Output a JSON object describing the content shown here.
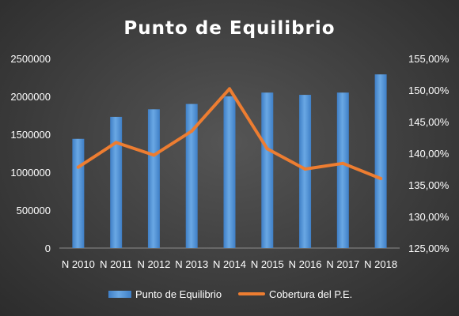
{
  "chart_data": {
    "type": "bar",
    "title": "Punto de Equilibrio",
    "categories": [
      "N 2010",
      "N 2011",
      "N 2012",
      "N 2013",
      "N 2014",
      "N 2015",
      "N 2016",
      "N 2017",
      "N 2018"
    ],
    "series": [
      {
        "name": "Punto de Equilibrio",
        "type": "bar",
        "axis": "left",
        "color": "#5b9bd5",
        "values": [
          1440000,
          1730000,
          1830000,
          1900000,
          2000000,
          2050000,
          2020000,
          2050000,
          2290000
        ]
      },
      {
        "name": "Cobertura del P.E.",
        "type": "line",
        "axis": "right",
        "color": "#ed7d31",
        "values": [
          137.8,
          141.7,
          139.7,
          143.5,
          150.2,
          140.7,
          137.5,
          138.4,
          136.0
        ]
      }
    ],
    "y_left": {
      "ylim": [
        0,
        2500000
      ],
      "ticks": [
        0,
        500000,
        1000000,
        1500000,
        2000000,
        2500000
      ],
      "tick_labels": [
        "0",
        "500000",
        "1000000",
        "1500000",
        "2000000",
        "2500000"
      ]
    },
    "y_right": {
      "ylim": [
        125,
        155
      ],
      "ticks": [
        125,
        130,
        135,
        140,
        145,
        150,
        155
      ],
      "tick_labels": [
        "125,00%",
        "130,00%",
        "135,00%",
        "140,00%",
        "145,00%",
        "150,00%",
        "155,00%"
      ]
    },
    "grid": false,
    "legend": "bottom"
  },
  "colors": {
    "text": "#ffffff",
    "axis_line": "#8c8c8c"
  }
}
